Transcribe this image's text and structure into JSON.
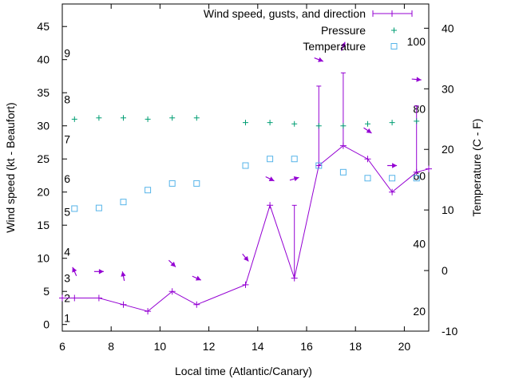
{
  "chart_data": {
    "type": "line",
    "x_label": "Local time (Atlantic/Canary)",
    "y_label_left": "Wind speed (kt - Beaufort)",
    "y_label_right": "Temperature (C - F)",
    "x_ticks": [
      6,
      8,
      10,
      12,
      14,
      16,
      18,
      20
    ],
    "x_range": [
      6,
      21
    ],
    "y_left_ticks": [
      0,
      5,
      10,
      15,
      20,
      25,
      30,
      35,
      40,
      45
    ],
    "y_left_range": [
      -1,
      48.4
    ],
    "y_right_ticks": [
      -10,
      0,
      10,
      20,
      30,
      40
    ],
    "y_right_range": [
      -10,
      44
    ],
    "beaufort_labels": [
      {
        "label": "1",
        "kt": 1
      },
      {
        "label": "2",
        "kt": 4
      },
      {
        "label": "3",
        "kt": 7
      },
      {
        "label": "4",
        "kt": 11
      },
      {
        "label": "5",
        "kt": 17
      },
      {
        "label": "6",
        "kt": 22
      },
      {
        "label": "7",
        "kt": 28
      },
      {
        "label": "8",
        "kt": 34
      },
      {
        "label": "9",
        "kt": 41
      }
    ],
    "fahrenheit_labels": [
      {
        "label": "20",
        "celsius": -6.7
      },
      {
        "label": "40",
        "celsius": 4.4
      },
      {
        "label": "60",
        "celsius": 15.6
      },
      {
        "label": "80",
        "celsius": 26.7
      },
      {
        "label": "100",
        "celsius": 37.8
      }
    ],
    "legend": [
      {
        "name": "Wind speed, gusts, and direction",
        "color": "#9400d3"
      },
      {
        "name": "Pressure",
        "color": "#009e73"
      },
      {
        "name": "Temperature",
        "color": "#56b4e9"
      }
    ],
    "legend_position": "top-right",
    "series": [
      {
        "name": "Wind speed, gusts, and direction",
        "color": "#9400d3",
        "points": [
          {
            "x": 6.0,
            "y": 4
          },
          {
            "x": 6.5,
            "y": 4
          },
          {
            "x": 7.5,
            "y": 4
          },
          {
            "x": 8.5,
            "y": 3
          },
          {
            "x": 9.5,
            "y": 2
          },
          {
            "x": 10.5,
            "y": 5
          },
          {
            "x": 11.5,
            "y": 3
          },
          {
            "x": 13.5,
            "y": 6
          },
          {
            "x": 14.5,
            "y": 18
          },
          {
            "x": 15.5,
            "y": 7,
            "gust": 18
          },
          {
            "x": 16.5,
            "y": 24,
            "gust": 36
          },
          {
            "x": 17.5,
            "y": 27,
            "gust": 38
          },
          {
            "x": 18.5,
            "y": 25
          },
          {
            "x": 19.5,
            "y": 20
          },
          {
            "x": 20.5,
            "y": 23,
            "gust": 33
          },
          {
            "x": 21.0,
            "y": 23.5
          }
        ]
      },
      {
        "name": "Pressure",
        "color": "#009e73",
        "points": [
          {
            "x": 6.5,
            "y": 31
          },
          {
            "x": 7.5,
            "y": 31.2
          },
          {
            "x": 8.5,
            "y": 31.2
          },
          {
            "x": 9.5,
            "y": 31
          },
          {
            "x": 10.5,
            "y": 31.2
          },
          {
            "x": 11.5,
            "y": 31.2
          },
          {
            "x": 13.5,
            "y": 30.5
          },
          {
            "x": 14.5,
            "y": 30.5
          },
          {
            "x": 15.5,
            "y": 30.3
          },
          {
            "x": 16.5,
            "y": 30
          },
          {
            "x": 17.5,
            "y": 30
          },
          {
            "x": 18.5,
            "y": 30.3
          },
          {
            "x": 19.5,
            "y": 30.5
          },
          {
            "x": 20.5,
            "y": 30.7
          }
        ]
      },
      {
        "name": "Temperature",
        "color": "#56b4e9",
        "points": [
          {
            "x": 6.5,
            "y": 17.5
          },
          {
            "x": 7.5,
            "y": 17.6
          },
          {
            "x": 8.5,
            "y": 18.5
          },
          {
            "x": 9.5,
            "y": 20.3
          },
          {
            "x": 10.5,
            "y": 21.3
          },
          {
            "x": 11.5,
            "y": 21.3
          },
          {
            "x": 13.5,
            "y": 24
          },
          {
            "x": 14.5,
            "y": 25
          },
          {
            "x": 15.5,
            "y": 25
          },
          {
            "x": 16.5,
            "y": 24
          },
          {
            "x": 17.5,
            "y": 23
          },
          {
            "x": 18.5,
            "y": 22.1
          },
          {
            "x": 19.5,
            "y": 22.1
          },
          {
            "x": 20.5,
            "y": 22.1
          }
        ]
      },
      {
        "name": "Wind direction",
        "color": "#9400d3",
        "points": [
          {
            "x": 6.5,
            "y": 8,
            "dx": -0.12,
            "dy": 1.0
          },
          {
            "x": 7.5,
            "y": 8,
            "dx": 0.35,
            "dy": 0
          },
          {
            "x": 8.5,
            "y": 7.3,
            "dx": -0.05,
            "dy": 0.9
          },
          {
            "x": 10.5,
            "y": 9.2,
            "dx": 0.25,
            "dy": -0.9
          },
          {
            "x": 11.5,
            "y": 7.0,
            "dx": 0.3,
            "dy": -0.5
          },
          {
            "x": 13.5,
            "y": 10.1,
            "dx": 0.2,
            "dy": -0.9
          },
          {
            "x": 14.5,
            "y": 22.0,
            "dx": 0.28,
            "dy": -0.5
          },
          {
            "x": 15.5,
            "y": 22.0,
            "dx": 0.28,
            "dy": 0.3
          },
          {
            "x": 16.5,
            "y": 40.0,
            "dx": 0.28,
            "dy": -0.4
          },
          {
            "x": 17.5,
            "y": 42.0,
            "dx": 0.1,
            "dy": 0.9
          },
          {
            "x": 18.5,
            "y": 29.3,
            "dx": 0.28,
            "dy": -0.7
          },
          {
            "x": 19.5,
            "y": 24.0,
            "dx": 0.3,
            "dy": 0
          },
          {
            "x": 20.5,
            "y": 37.0,
            "dx": 0.3,
            "dy": -0.1
          }
        ]
      }
    ]
  }
}
